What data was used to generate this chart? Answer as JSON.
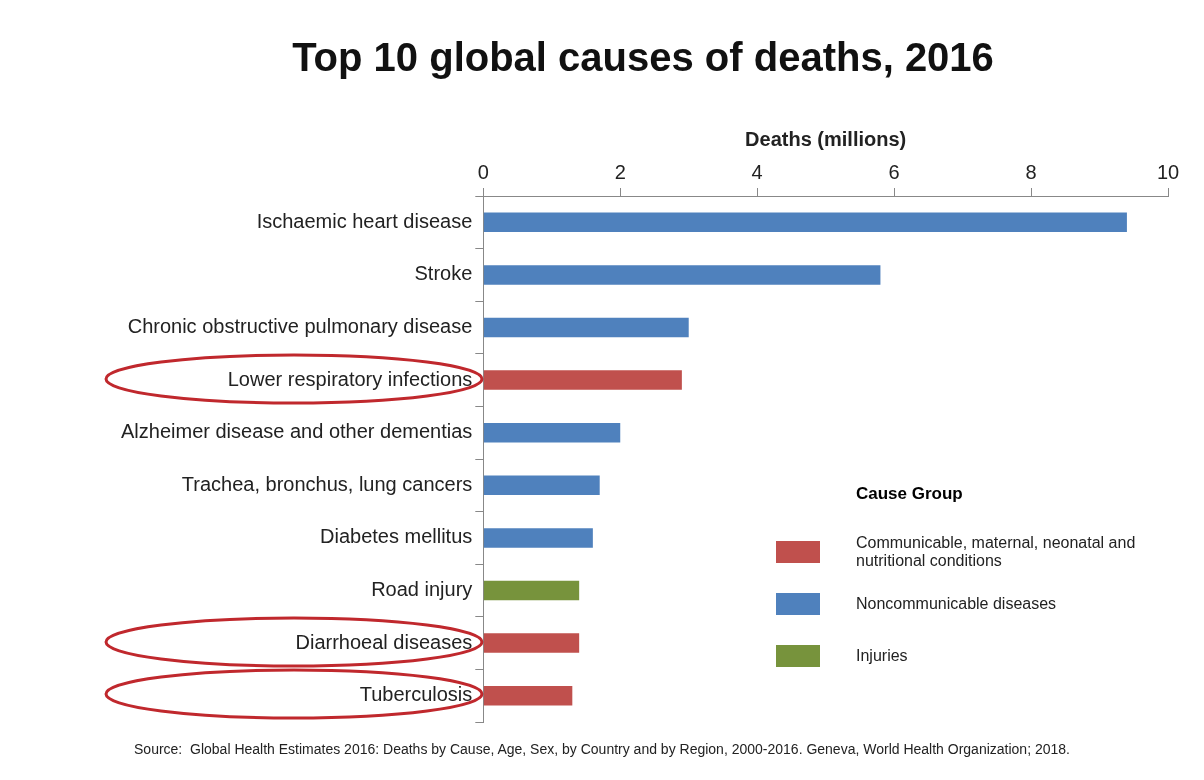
{
  "chart_data": {
    "type": "bar",
    "orientation": "horizontal",
    "stacked": true,
    "title": "Top 10 global causes of deaths, 2016",
    "xlabel": "Deaths (millions)",
    "legend_title": "Cause Group",
    "legend": "bottom right",
    "categories": [
      "Ischaemic heart disease",
      "Stroke",
      "Chronic obstructive pulmonary disease",
      "Lower respiratory infections",
      "Alzheimer disease and other dementias",
      "Trachea, bronchus, lung cancers",
      "Diabetes mellitus",
      "Road injury",
      "Diarrhoeal diseases",
      "Tuberculosis"
    ],
    "series": [
      {
        "name": "Communicable, maternal, neonatal and nutritional conditions",
        "color": "#c0504d",
        "values": [
          null,
          null,
          null,
          2.9,
          null,
          null,
          null,
          null,
          1.4,
          1.3
        ]
      },
      {
        "name": "Noncommunicable diseases",
        "color": "#4f81bd",
        "values": [
          9.4,
          5.8,
          3.0,
          null,
          2.0,
          1.7,
          1.6,
          null,
          null,
          null
        ]
      },
      {
        "name": "Injuries",
        "color": "#77933c",
        "values": [
          null,
          null,
          null,
          null,
          null,
          null,
          null,
          1.4,
          null,
          null
        ]
      }
    ],
    "xlim": [
      0,
      10
    ],
    "xticks": [
      0,
      2,
      4,
      6,
      8,
      10
    ],
    "annotations": [
      "Source:  Global Health Estimates 2016: Deaths by Cause, Age, Sex, by Country and by Region, 2000-2016. Geneva, World Health Organization; 2018."
    ]
  }
}
